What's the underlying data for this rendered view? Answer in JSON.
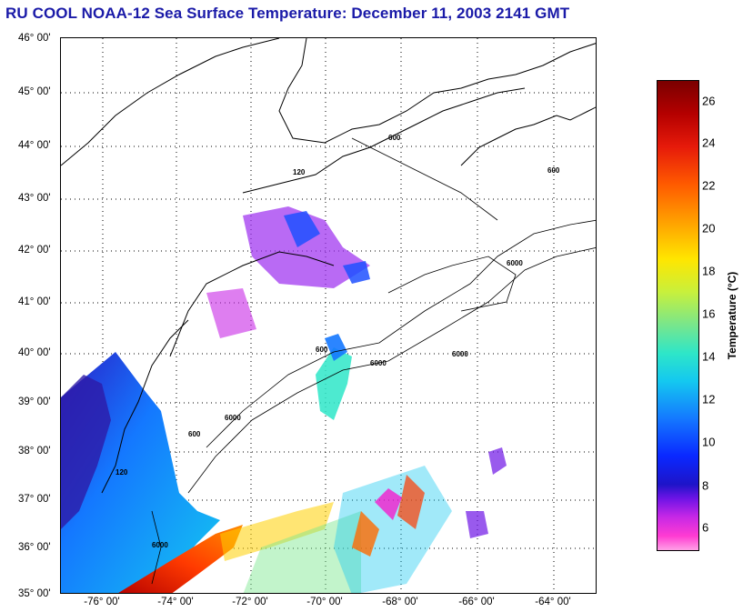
{
  "title": "RU COOL  NOAA-12  Sea Surface Temperature:  December 11, 2003 2141 GMT",
  "lat_labels": [
    "46° 00'",
    "45° 00'",
    "44° 00'",
    "43° 00'",
    "42° 00'",
    "41° 00'",
    "40° 00'",
    "39° 00'",
    "38° 00'",
    "37° 00'",
    "36° 00'",
    "35° 00'"
  ],
  "lon_labels": [
    "-76° 00'",
    "-74° 00'",
    "-72° 00'",
    "-70° 00'",
    "-68° 00'",
    "-66° 00'",
    "-64° 00'"
  ],
  "isobath_labels": [
    "600",
    "6000",
    "120"
  ],
  "colorbar": {
    "label": "Temperature (°C)",
    "ticks": [
      "26",
      "24",
      "22",
      "20",
      "18",
      "16",
      "14",
      "12",
      "10",
      "8",
      "6"
    ]
  },
  "colors": {
    "title": "#1a1aa8",
    "land": "#ffffff",
    "coast": "#000000"
  }
}
